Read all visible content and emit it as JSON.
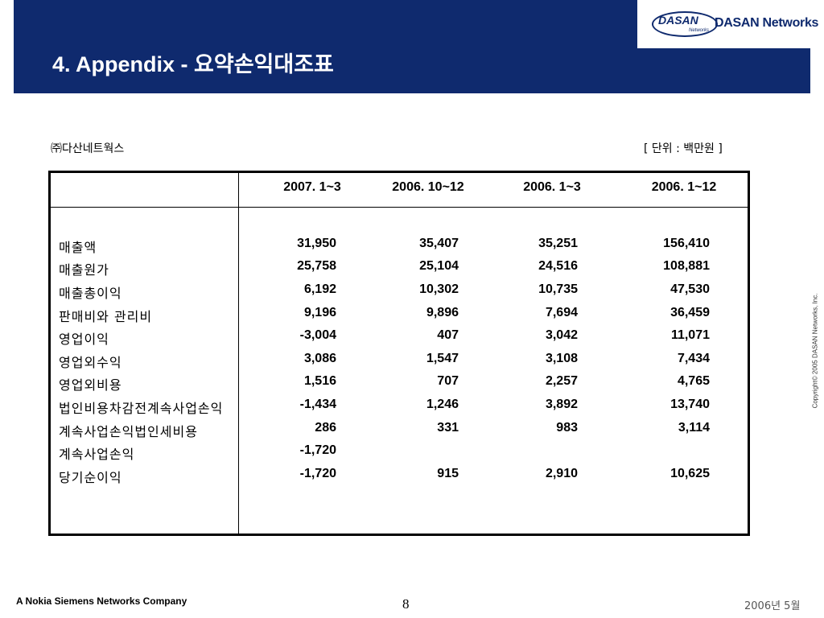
{
  "header": {
    "title": "4. Appendix - 요약손익대조표",
    "logo_small": "DASAN",
    "logo_sub": "Networks",
    "logo_text": "DASAN Networks"
  },
  "company_name": "㈜다산네트웍스",
  "unit_note": "[ 단위 : 백만원 ]",
  "table": {
    "columns": [
      "2007. 1~3",
      "2006. 10~12",
      "2006. 1~3",
      "2006. 1~12"
    ],
    "rows": [
      {
        "label": "매출액",
        "values": [
          "31,950",
          "35,407",
          "35,251",
          "156,410"
        ]
      },
      {
        "label": "매출원가",
        "values": [
          "25,758",
          "25,104",
          "24,516",
          "108,881"
        ]
      },
      {
        "label": "매출총이익",
        "values": [
          "6,192",
          "10,302",
          "10,735",
          "47,530"
        ]
      },
      {
        "label": "판매비와 관리비",
        "values": [
          "9,196",
          "9,896",
          "7,694",
          "36,459"
        ]
      },
      {
        "label": "영업이익",
        "values": [
          "-3,004",
          "407",
          "3,042",
          "11,071"
        ]
      },
      {
        "label": "영업외수익",
        "values": [
          "3,086",
          "1,547",
          "3,108",
          "7,434"
        ]
      },
      {
        "label": "영업외비용",
        "values": [
          "1,516",
          "707",
          "2,257",
          "4,765"
        ]
      },
      {
        "label": "법인비용차감전계속사업손익",
        "values": [
          "-1,434",
          "1,246",
          "3,892",
          "13,740"
        ]
      },
      {
        "label": "계속사업손익법인세비용",
        "values": [
          "286",
          "331",
          "983",
          "3,114"
        ]
      },
      {
        "label": "계속사업손익",
        "values": [
          "-1,720",
          "",
          "",
          ""
        ]
      },
      {
        "label": "당기순이익",
        "values": [
          "-1,720",
          "915",
          "2,910",
          "10,625"
        ]
      }
    ]
  },
  "copyright": "Copyright© 2005 DASAN Networks, Inc.",
  "footer": {
    "left": "A Nokia Siemens Networks Company",
    "page": "8",
    "date": "2006년 5월"
  }
}
